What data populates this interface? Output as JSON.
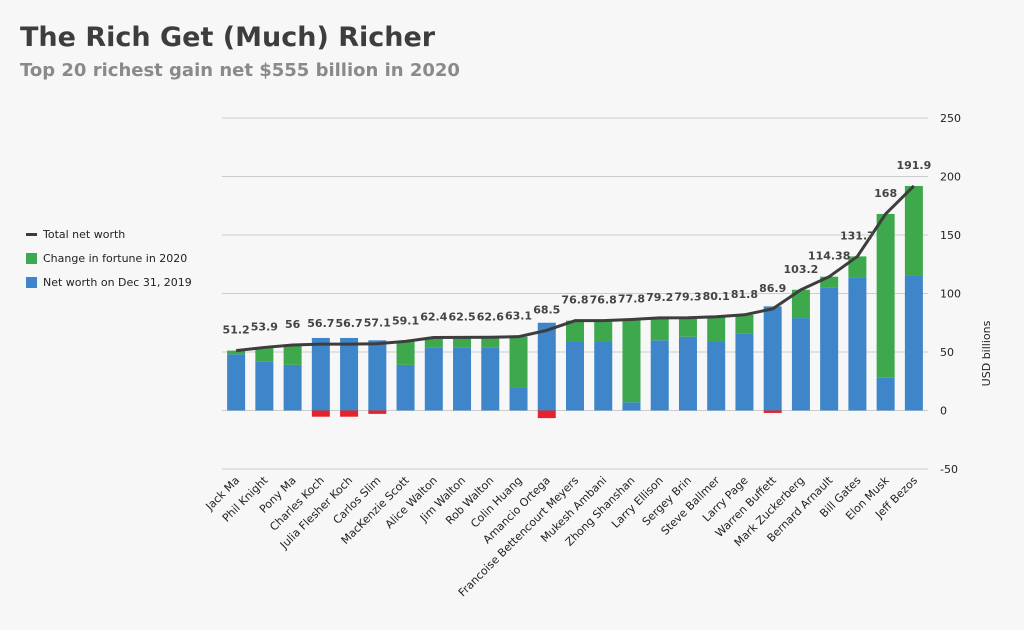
{
  "title": "The Rich Get (Much) Richer",
  "subtitle": "Top 20 richest gain net $555 billion in 2020",
  "legend": {
    "line": "Total net worth",
    "change": "Change in fortune in 2020",
    "base": "Net worth on Dec 31, 2019"
  },
  "colors": {
    "base": "#3e86c9",
    "change": "#3ea84c",
    "negative": "#e8222a",
    "line": "#3d3d3d",
    "grid": "#cccccc"
  },
  "chart_data": {
    "type": "bar",
    "stacked": true,
    "categories": [
      "Jack Ma",
      "Phil Knight",
      "Pony Ma",
      "Charles Koch",
      "Julia Flesher Koch",
      "Carlos Slim",
      "MacKenzie Scott",
      "Alice Walton",
      "Jim Walton",
      "Rob Walton",
      "Colin Huang",
      "Amancio Ortega",
      "Francoise Bettencourt Meyers",
      "Mukesh Ambani",
      "Zhong Shanshan",
      "Larry Ellison",
      "Sergey Brin",
      "Steve Ballmer",
      "Larry Page",
      "Warren Buffett",
      "Mark Zuckerberg",
      "Bernard Arnault",
      "Bill Gates",
      "Elon Musk",
      "Jeff Bezos"
    ],
    "series": [
      {
        "name": "Net worth on Dec 31, 2019",
        "values": [
          48,
          42,
          39,
          62,
          62,
          60,
          39,
          54,
          54,
          54,
          20,
          75,
          59,
          59,
          7,
          60,
          63,
          59,
          66,
          89,
          79,
          105,
          114,
          28,
          115
        ]
      },
      {
        "name": "Change in fortune in 2020",
        "values": [
          3.2,
          11.9,
          17,
          -5.3,
          -5.3,
          -2.9,
          20.1,
          8.4,
          8.5,
          8.6,
          43.1,
          -6.5,
          17.8,
          17.8,
          70.8,
          19.2,
          16.3,
          21.1,
          15.8,
          -2.1,
          24.2,
          9.38,
          17.7,
          140,
          76.9
        ]
      },
      {
        "name": "Total net worth",
        "type": "line",
        "values": [
          51.2,
          53.9,
          56,
          56.7,
          56.7,
          57.1,
          59.1,
          62.4,
          62.5,
          62.6,
          63.1,
          68.5,
          76.8,
          76.8,
          77.8,
          79.2,
          79.3,
          80.1,
          81.8,
          86.9,
          103.2,
          114.38,
          131.7,
          168,
          191.9
        ]
      }
    ],
    "point_labels": [
      "51.2",
      "53.9",
      "56",
      "56.7",
      "56.7",
      "57.1",
      "59.1",
      "62.4",
      "62.5",
      "62.6",
      "63.1",
      "68.5",
      "76.8",
      "76.8",
      "77.8",
      "79.2",
      "79.3",
      "80.1",
      "81.8",
      "86.9",
      "103.2",
      "114.38",
      "131.7",
      "168",
      "191.9"
    ],
    "ylabel": "USD billions",
    "ylim": [
      -50,
      250
    ],
    "yticks": [
      -50,
      0,
      50,
      100,
      150,
      200,
      250
    ],
    "grid": true,
    "legend_position": "left"
  }
}
